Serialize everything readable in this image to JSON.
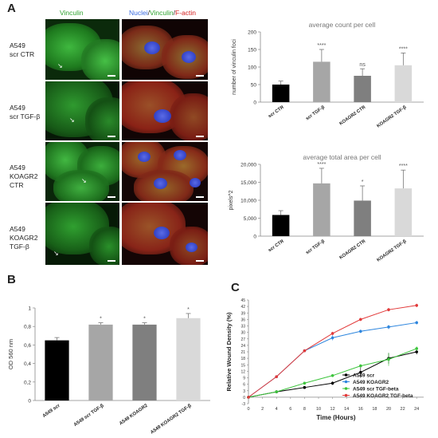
{
  "panels": {
    "a": "A",
    "b": "B",
    "c": "C"
  },
  "microscopy": {
    "col_vinculin": "Vinculin",
    "col_merged": {
      "nuclei": "Nuclei",
      "sep1": "/",
      "vinculin": "Vinculin",
      "sep2": "/",
      "factin": "F-actin"
    },
    "rows": [
      {
        "line1": "A549",
        "line2": "scr CTR",
        "line3": ""
      },
      {
        "line1": "A549",
        "line2": "scr TGF-β",
        "line3": ""
      },
      {
        "line1": "A549",
        "line2": "KOAGR2",
        "line3": "CTR"
      },
      {
        "line1": "A549",
        "line2": "KOAGR2",
        "line3": "TGF-β"
      }
    ],
    "colors": {
      "vinculin": "#2fa32f",
      "nuclei": "#3b6be0",
      "factin": "#d42020"
    }
  },
  "chart_data": [
    {
      "id": "count",
      "type": "bar",
      "title": "average count per cell",
      "ylabel": "number of vinculin foci",
      "xlabel": "",
      "categories": [
        "scr CTR",
        "scr TGF-β",
        "KOAGR2 CTR",
        "KOAGR2 TGF-β"
      ],
      "values": [
        50,
        115,
        75,
        105
      ],
      "errors": [
        10,
        35,
        20,
        35
      ],
      "significance": [
        "",
        "****",
        "ns",
        "****"
      ],
      "colors": [
        "#000000",
        "#a6a6a6",
        "#7f7f7f",
        "#d9d9d9"
      ],
      "ylim": [
        0,
        200
      ],
      "yticks": [
        "0",
        "50",
        "100",
        "150",
        "200"
      ]
    },
    {
      "id": "area",
      "type": "bar",
      "title": "average total area per cell",
      "ylabel": "pixels^2",
      "xlabel": "",
      "categories": [
        "scr CTR",
        "scr TGF-β",
        "KOAGR2 CTR",
        "KOAGR2 TGF-β"
      ],
      "values": [
        5900,
        14700,
        9900,
        13300
      ],
      "errors": [
        1200,
        4200,
        4100,
        5100
      ],
      "significance": [
        "",
        "****",
        "*",
        "****"
      ],
      "colors": [
        "#000000",
        "#a6a6a6",
        "#7f7f7f",
        "#d9d9d9"
      ],
      "ylim": [
        0,
        20000
      ],
      "yticks": [
        "0",
        "5,000",
        "10,000",
        "15,000",
        "20,000"
      ]
    },
    {
      "id": "od",
      "type": "bar",
      "title": "",
      "ylabel": "OD 560 nm",
      "xlabel": "",
      "categories": [
        "A549 scr",
        "A549 scr TGF-β",
        "A549 KOAGR2",
        "A549 KOAGR2 TGF-β"
      ],
      "values": [
        0.65,
        0.82,
        0.82,
        0.89
      ],
      "errors": [
        0.03,
        0.02,
        0.02,
        0.05
      ],
      "significance": [
        "",
        "*",
        "*",
        "*"
      ],
      "colors": [
        "#000000",
        "#a6a6a6",
        "#7f7f7f",
        "#d9d9d9"
      ],
      "ylim": [
        0,
        1
      ],
      "yticks": [
        "0",
        "0,2",
        "0,4",
        "0,6",
        "0,8",
        "1"
      ]
    },
    {
      "id": "wound",
      "type": "line",
      "title": "",
      "xlabel": "Time (Hours)",
      "ylabel": "Relative Wound Density (%)",
      "x": [
        0,
        4,
        8,
        12,
        16,
        20,
        24
      ],
      "xticks": [
        "0",
        "2",
        "4",
        "6",
        "8",
        "10",
        "12",
        "14",
        "16",
        "18",
        "20",
        "22",
        "24"
      ],
      "xtick_values": [
        0,
        2,
        4,
        6,
        8,
        10,
        12,
        14,
        16,
        18,
        20,
        22,
        24
      ],
      "ylim": [
        -3,
        45
      ],
      "yticks": [
        "-3",
        "0",
        "3",
        "6",
        "9",
        "12",
        "15",
        "18",
        "21",
        "24",
        "27",
        "30",
        "33",
        "36",
        "39",
        "42",
        "45"
      ],
      "ytick_values": [
        -3,
        0,
        3,
        6,
        9,
        12,
        15,
        18,
        21,
        24,
        27,
        30,
        33,
        36,
        39,
        42,
        45
      ],
      "series": [
        {
          "name": "A549 scr",
          "color": "#000000",
          "values": [
            0,
            2.5,
            4.5,
            6.5,
            11.5,
            18,
            21
          ],
          "errors": [
            0,
            0.3,
            0.5,
            0.8,
            2.5,
            2.5,
            1.2
          ]
        },
        {
          "name": "A549 KOAGR2",
          "color": "#2e86de",
          "values": [
            0,
            9.5,
            21.5,
            27.5,
            30.5,
            32.5,
            34.5
          ],
          "errors": [
            0,
            0.4,
            0.6,
            1.2,
            0.8,
            1.0,
            0.8
          ]
        },
        {
          "name": "A549 scr TGF-beta",
          "color": "#3cc43c",
          "values": [
            0,
            2.5,
            6.5,
            10,
            14.5,
            17.5,
            22.5
          ],
          "errors": [
            0,
            0.3,
            0.5,
            0.6,
            0.8,
            3.0,
            1.0
          ]
        },
        {
          "name": "A549 KOAGR2 TGF-beta",
          "color": "#e23a3a",
          "values": [
            0,
            9.5,
            21.5,
            29.5,
            36,
            40.5,
            42.5
          ],
          "errors": [
            0,
            0.4,
            0.6,
            0.8,
            0.8,
            0.8,
            0.8
          ]
        }
      ],
      "legend_placement": "bottom-right"
    }
  ]
}
